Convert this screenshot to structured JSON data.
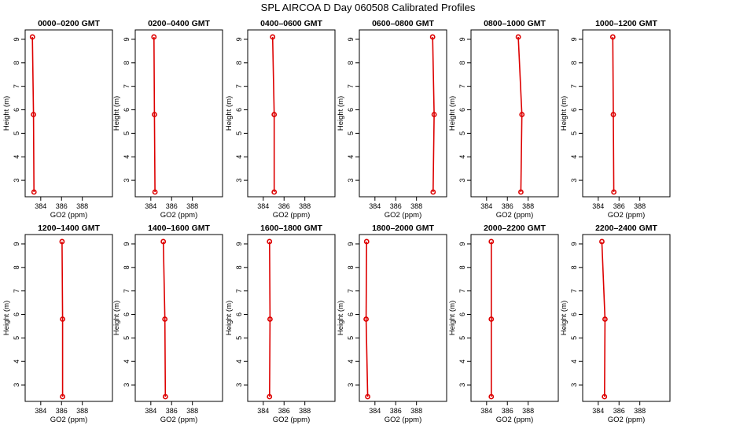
{
  "title": "SPL AIRCOA D  Day 060508  Calibrated Profiles",
  "colors": {
    "series": "#dd0000",
    "axes": "#000000",
    "background": "#ffffff"
  },
  "chart_data": [
    {
      "type": "line",
      "title": "0000–0200 GMT",
      "xlabel": "GO2 (ppm)",
      "ylabel": "Height (m)",
      "xlim": [
        382.5,
        390.9
      ],
      "ylim": [
        2.3,
        9.4
      ],
      "x_ticks": [
        384,
        386,
        388
      ],
      "y_ticks": [
        3,
        4,
        5,
        6,
        7,
        8,
        9
      ],
      "points": [
        {
          "x": 383.35,
          "y": 2.5
        },
        {
          "x": 383.3,
          "y": 5.8
        },
        {
          "x": 383.2,
          "y": 9.1
        }
      ]
    },
    {
      "type": "line",
      "title": "0200–0400 GMT",
      "xlabel": "GO2 (ppm)",
      "ylabel": "Height (m)",
      "xlim": [
        382.5,
        390.9
      ],
      "ylim": [
        2.3,
        9.4
      ],
      "x_ticks": [
        384,
        386,
        388
      ],
      "y_ticks": [
        3,
        4,
        5,
        6,
        7,
        8,
        9
      ],
      "points": [
        {
          "x": 384.4,
          "y": 2.5
        },
        {
          "x": 384.35,
          "y": 5.8
        },
        {
          "x": 384.3,
          "y": 9.1
        }
      ]
    },
    {
      "type": "line",
      "title": "0400–0600 GMT",
      "xlabel": "GO2 (ppm)",
      "ylabel": "Height (m)",
      "xlim": [
        382.5,
        390.9
      ],
      "ylim": [
        2.3,
        9.4
      ],
      "x_ticks": [
        384,
        386,
        388
      ],
      "y_ticks": [
        3,
        4,
        5,
        6,
        7,
        8,
        9
      ],
      "points": [
        {
          "x": 385.05,
          "y": 2.5
        },
        {
          "x": 385.05,
          "y": 5.8
        },
        {
          "x": 384.9,
          "y": 9.1
        }
      ]
    },
    {
      "type": "line",
      "title": "0600–0800 GMT",
      "xlabel": "GO2 (ppm)",
      "ylabel": "Height (m)",
      "xlim": [
        382.5,
        390.9
      ],
      "ylim": [
        2.3,
        9.4
      ],
      "x_ticks": [
        384,
        386,
        388
      ],
      "y_ticks": [
        3,
        4,
        5,
        6,
        7,
        8,
        9
      ],
      "points": [
        {
          "x": 389.6,
          "y": 2.5
        },
        {
          "x": 389.7,
          "y": 5.8
        },
        {
          "x": 389.55,
          "y": 9.1
        }
      ]
    },
    {
      "type": "line",
      "title": "0800–1000 GMT",
      "xlabel": "GO2 (ppm)",
      "ylabel": "Height (m)",
      "xlim": [
        382.5,
        390.9
      ],
      "ylim": [
        2.3,
        9.4
      ],
      "x_ticks": [
        384,
        386,
        388
      ],
      "y_ticks": [
        3,
        4,
        5,
        6,
        7,
        8,
        9
      ],
      "points": [
        {
          "x": 387.3,
          "y": 2.5
        },
        {
          "x": 387.4,
          "y": 5.8
        },
        {
          "x": 387.05,
          "y": 9.1
        }
      ]
    },
    {
      "type": "line",
      "title": "1000–1200 GMT",
      "xlabel": "GO2 (ppm)",
      "ylabel": "Height (m)",
      "xlim": [
        382.5,
        390.9
      ],
      "ylim": [
        2.3,
        9.4
      ],
      "x_ticks": [
        384,
        386,
        388
      ],
      "y_ticks": [
        3,
        4,
        5,
        6,
        7,
        8,
        9
      ],
      "points": [
        {
          "x": 385.5,
          "y": 2.5
        },
        {
          "x": 385.45,
          "y": 5.8
        },
        {
          "x": 385.4,
          "y": 9.1
        }
      ]
    },
    {
      "type": "line",
      "title": "1200–1400 GMT",
      "xlabel": "GO2 (ppm)",
      "ylabel": "Height (m)",
      "xlim": [
        382.5,
        390.9
      ],
      "ylim": [
        2.3,
        9.4
      ],
      "x_ticks": [
        384,
        386,
        388
      ],
      "y_ticks": [
        3,
        4,
        5,
        6,
        7,
        8,
        9
      ],
      "points": [
        {
          "x": 386.1,
          "y": 2.5
        },
        {
          "x": 386.1,
          "y": 5.8
        },
        {
          "x": 386.05,
          "y": 9.1
        }
      ]
    },
    {
      "type": "line",
      "title": "1400–1600 GMT",
      "xlabel": "GO2 (ppm)",
      "ylabel": "Height (m)",
      "xlim": [
        382.5,
        390.9
      ],
      "ylim": [
        2.3,
        9.4
      ],
      "x_ticks": [
        384,
        386,
        388
      ],
      "y_ticks": [
        3,
        4,
        5,
        6,
        7,
        8,
        9
      ],
      "points": [
        {
          "x": 385.4,
          "y": 2.5
        },
        {
          "x": 385.35,
          "y": 5.8
        },
        {
          "x": 385.2,
          "y": 9.1
        }
      ]
    },
    {
      "type": "line",
      "title": "1600–1800 GMT",
      "xlabel": "GO2 (ppm)",
      "ylabel": "Height (m)",
      "xlim": [
        382.5,
        390.9
      ],
      "ylim": [
        2.3,
        9.4
      ],
      "x_ticks": [
        384,
        386,
        388
      ],
      "y_ticks": [
        3,
        4,
        5,
        6,
        7,
        8,
        9
      ],
      "points": [
        {
          "x": 384.6,
          "y": 2.5
        },
        {
          "x": 384.65,
          "y": 5.8
        },
        {
          "x": 384.6,
          "y": 9.1
        }
      ]
    },
    {
      "type": "line",
      "title": "1800–2000 GMT",
      "xlabel": "GO2 (ppm)",
      "ylabel": "Height (m)",
      "xlim": [
        382.5,
        390.9
      ],
      "ylim": [
        2.3,
        9.4
      ],
      "x_ticks": [
        384,
        386,
        388
      ],
      "y_ticks": [
        3,
        4,
        5,
        6,
        7,
        8,
        9
      ],
      "points": [
        {
          "x": 383.3,
          "y": 2.5
        },
        {
          "x": 383.15,
          "y": 5.8
        },
        {
          "x": 383.2,
          "y": 9.1
        }
      ]
    },
    {
      "type": "line",
      "title": "2000–2200 GMT",
      "xlabel": "GO2 (ppm)",
      "ylabel": "Height (m)",
      "xlim": [
        382.5,
        390.9
      ],
      "ylim": [
        2.3,
        9.4
      ],
      "x_ticks": [
        384,
        386,
        388
      ],
      "y_ticks": [
        3,
        4,
        5,
        6,
        7,
        8,
        9
      ],
      "points": [
        {
          "x": 384.45,
          "y": 2.5
        },
        {
          "x": 384.45,
          "y": 5.8
        },
        {
          "x": 384.45,
          "y": 9.1
        }
      ]
    },
    {
      "type": "line",
      "title": "2200–2400 GMT",
      "xlabel": "GO2 (ppm)",
      "ylabel": "Height (m)",
      "xlim": [
        382.5,
        390.9
      ],
      "ylim": [
        2.3,
        9.4
      ],
      "x_ticks": [
        384,
        386,
        388
      ],
      "y_ticks": [
        3,
        4,
        5,
        6,
        7,
        8,
        9
      ],
      "points": [
        {
          "x": 384.6,
          "y": 2.5
        },
        {
          "x": 384.65,
          "y": 5.8
        },
        {
          "x": 384.35,
          "y": 9.1
        }
      ]
    }
  ]
}
